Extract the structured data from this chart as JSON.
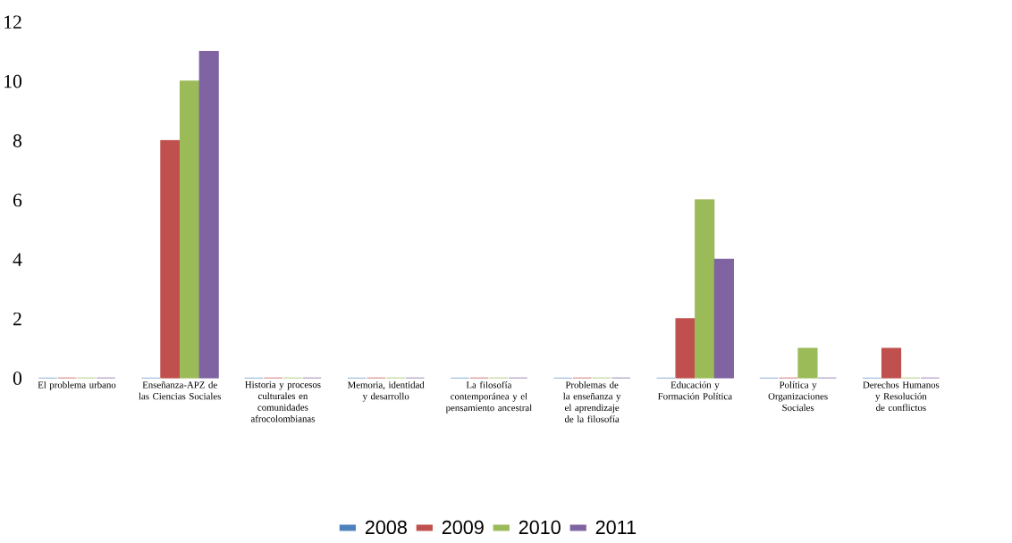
{
  "chart_data": {
    "type": "bar",
    "categories": [
      "El problema urbano",
      "Enseñanza-APZ de las Ciencias Sociales",
      "Historia y procesos culturales en comunidades afrocolombianas",
      "Memoria, identidad y desarrollo",
      "La filosofía contemporánea y el pensamiento ancestral",
      "Problemas de la enseñanza y el aprendizaje de la filosofía",
      "Educación y Formación Política",
      "Política y Organizaciones Sociales",
      "Derechos Humanos y Resolución de conflictos"
    ],
    "series": [
      {
        "name": "2008",
        "color": "#4f81bd",
        "values": [
          0,
          0,
          0,
          0,
          0,
          0,
          0,
          0,
          0
        ]
      },
      {
        "name": "2009",
        "color": "#c0504d",
        "values": [
          0,
          8,
          0,
          0,
          0,
          0,
          2,
          0,
          1
        ]
      },
      {
        "name": "2010",
        "color": "#9bbb59",
        "values": [
          0,
          10,
          0,
          0,
          0,
          0,
          6,
          1,
          0
        ]
      },
      {
        "name": "2011",
        "color": "#8064a2",
        "values": [
          0,
          11,
          0,
          0,
          0,
          0,
          4,
          0,
          0
        ]
      }
    ],
    "ylim": [
      0,
      12
    ],
    "yticks": [
      0,
      2,
      4,
      6,
      8,
      10,
      12
    ],
    "legend": "bottom"
  }
}
